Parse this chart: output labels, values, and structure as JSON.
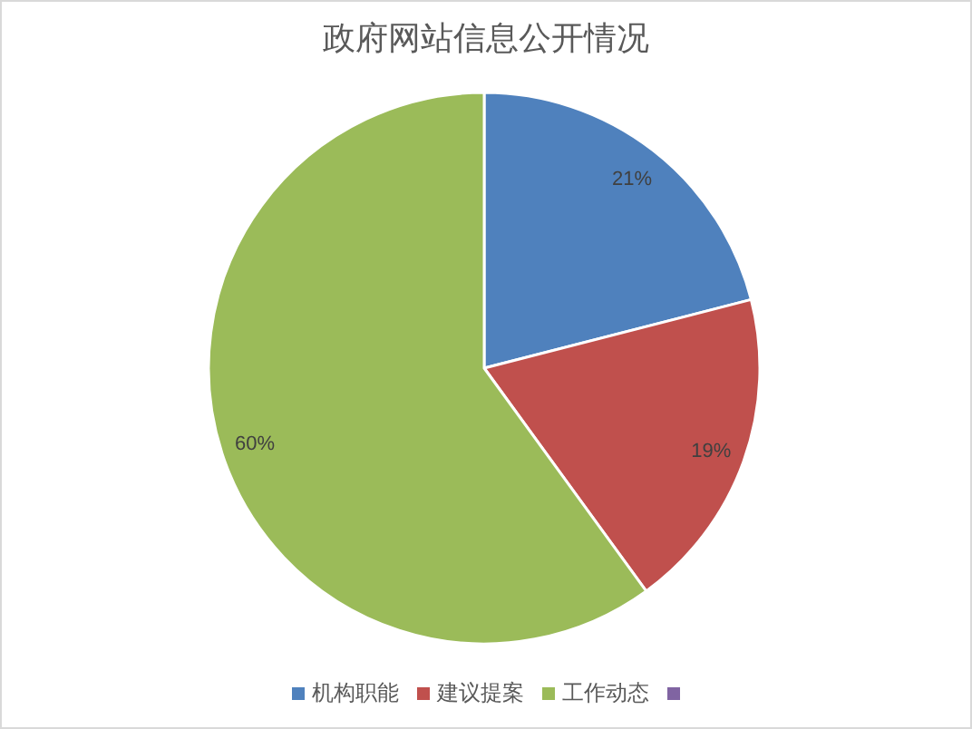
{
  "chart_data": {
    "type": "pie",
    "title": "政府网站信息公开情况",
    "categories": [
      "机构职能",
      "建议提案",
      "工作动态",
      null
    ],
    "values": [
      21,
      19,
      60,
      0
    ],
    "colors": [
      "#4f81bd",
      "#c0504d",
      "#9bbb59",
      "#8064a2"
    ],
    "value_labels": [
      "21%",
      "19%",
      "60%",
      null
    ],
    "legend": "bottom"
  }
}
